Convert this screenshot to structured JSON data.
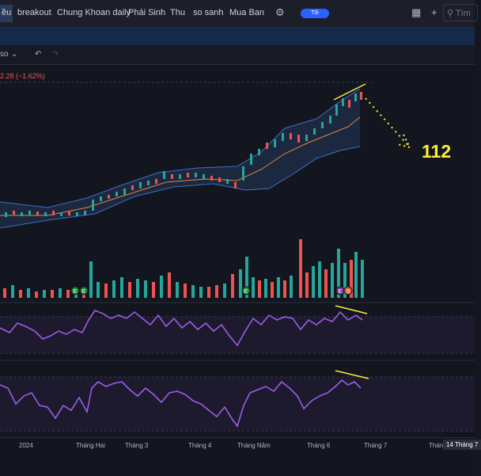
{
  "topbar": {
    "tabs": [
      "ều",
      "breakout",
      "Chung Khoan daily",
      "Phái Sinh",
      "Thu",
      "so sanh",
      "Mua Ban"
    ],
    "toggle_label": "Tối",
    "search_placeholder": "Tìm"
  },
  "toolbar": {
    "interval_label": "so"
  },
  "legend": {
    "price_change": "2.28 (−1.62%)"
  },
  "annotation": {
    "target": "112"
  },
  "events": {
    "earnings_label": "E",
    "split_label": "S"
  },
  "xaxis": {
    "labels": [
      "2024",
      "Tháng Hai",
      "Tháng 3",
      "Tháng 4",
      "Tháng Năm",
      "Tháng 6",
      "Tháng 7",
      "Thán"
    ],
    "highlight": "14 Tháng 7"
  },
  "colors": {
    "up": "#26a69a",
    "down": "#ef5350",
    "oscillator": "#9c5ce8",
    "annotation": "#ffeb3b",
    "band_fill": "#1e2b45"
  }
}
